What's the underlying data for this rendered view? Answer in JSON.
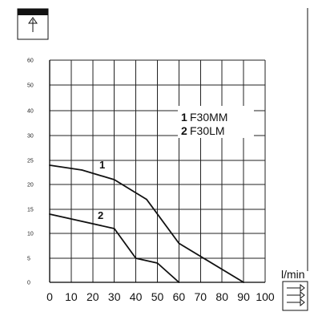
{
  "chart_data": {
    "type": "line",
    "title": "",
    "xlabel": "l/min",
    "ylabel": "",
    "xlim": [
      0,
      100
    ],
    "ylim": [
      0,
      60
    ],
    "x_ticks": [
      "0",
      "10",
      "20",
      "30",
      "40",
      "50",
      "60",
      "70",
      "80",
      "90",
      "100"
    ],
    "y_ticks": [
      "0",
      "5",
      "10",
      "15",
      "20",
      "25",
      "30",
      "40",
      "50",
      "60"
    ],
    "grid": true,
    "legend_position": "top-right",
    "legend": [
      {
        "number": "1",
        "name": "F30MM"
      },
      {
        "number": "2",
        "name": "F30LM"
      }
    ],
    "series": [
      {
        "label": "1",
        "legend_name": "F30MM",
        "points": [
          [
            0,
            24
          ],
          [
            15,
            23
          ],
          [
            30,
            21
          ],
          [
            45,
            17
          ],
          [
            60,
            8
          ],
          [
            90,
            0
          ]
        ]
      },
      {
        "label": "2",
        "legend_name": "F30LM",
        "points": [
          [
            0,
            14
          ],
          [
            30,
            11
          ],
          [
            40,
            5
          ],
          [
            50,
            4
          ],
          [
            60,
            0
          ]
        ]
      }
    ],
    "icons": {
      "top_left": "pressure-arrow-icon",
      "bottom_right": "flow-arrows-icon"
    },
    "colors": {
      "axis": "#000000",
      "grid": "#222222",
      "line": "#111111"
    }
  }
}
